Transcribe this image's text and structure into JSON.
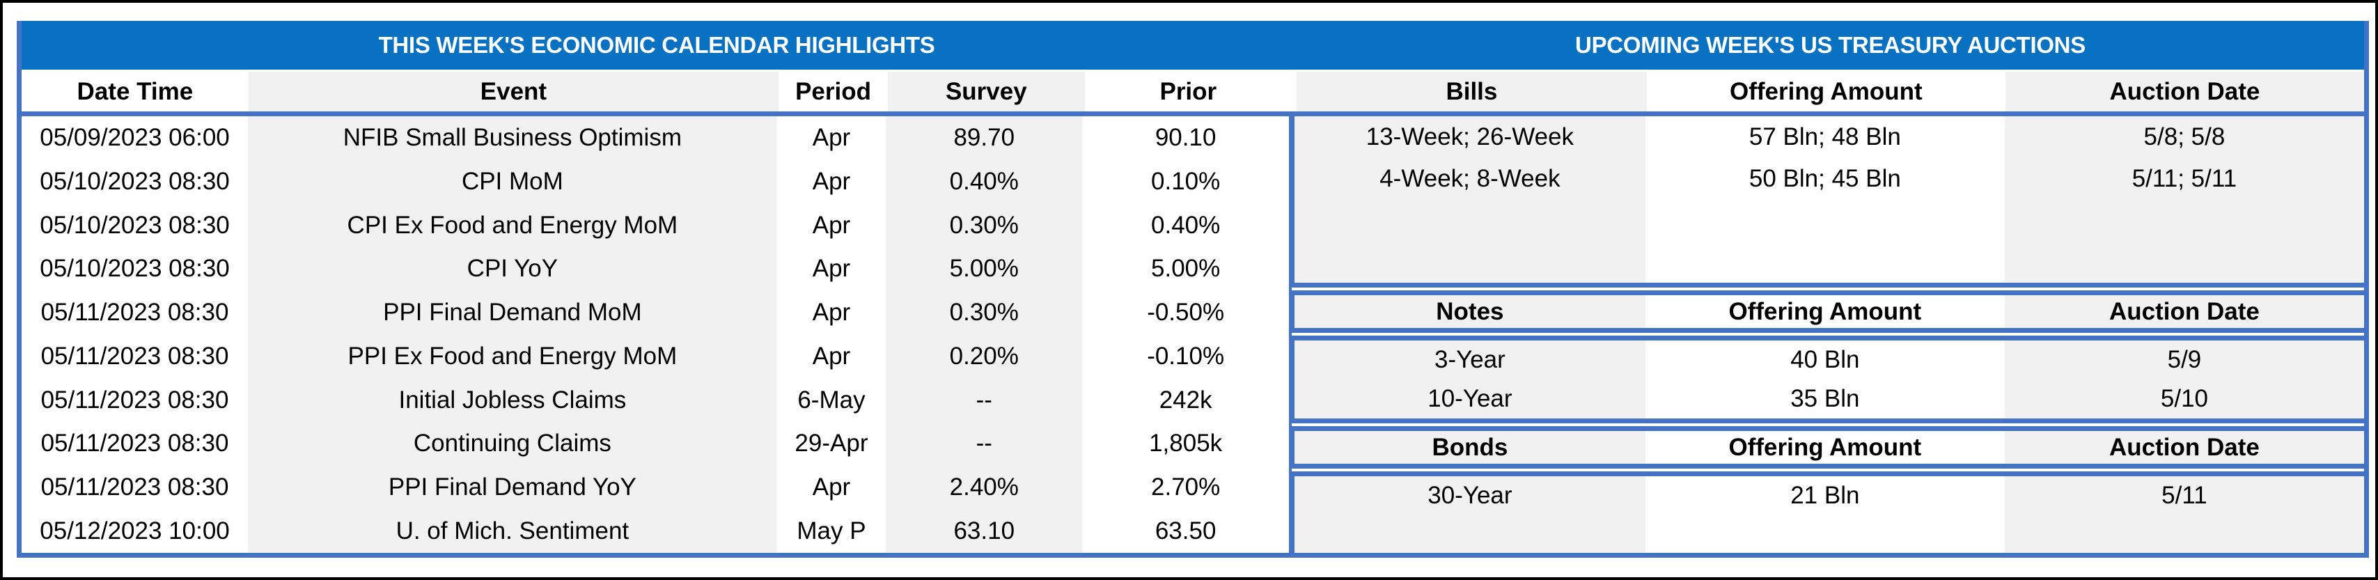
{
  "banner": {
    "left_title": "THIS WEEK'S ECONOMIC CALENDAR HIGHLIGHTS",
    "right_title": "UPCOMING WEEK'S US TREASURY AUCTIONS"
  },
  "colors": {
    "banner_blue": "#0971C2",
    "border_blue": "#4472C4",
    "stripe_gray": "#F1F1F1",
    "frame_black": "#000000",
    "banner_text": "#FFFFFF",
    "body_text": "#000000"
  },
  "calendar": {
    "columns": [
      "Date Time",
      "Event",
      "Period",
      "Survey",
      "Prior"
    ],
    "rows": [
      [
        "05/09/2023 06:00",
        "NFIB Small Business Optimism",
        "Apr",
        "89.70",
        "90.10"
      ],
      [
        "05/10/2023 08:30",
        "CPI MoM",
        "Apr",
        "0.40%",
        "0.10%"
      ],
      [
        "05/10/2023 08:30",
        "CPI Ex Food and Energy MoM",
        "Apr",
        "0.30%",
        "0.40%"
      ],
      [
        "05/10/2023 08:30",
        "CPI YoY",
        "Apr",
        "5.00%",
        "5.00%"
      ],
      [
        "05/11/2023 08:30",
        "PPI Final Demand MoM",
        "Apr",
        "0.30%",
        "-0.50%"
      ],
      [
        "05/11/2023 08:30",
        "PPI Ex Food and Energy MoM",
        "Apr",
        "0.20%",
        "-0.10%"
      ],
      [
        "05/11/2023 08:30",
        "Initial Jobless Claims",
        "6-May",
        "--",
        "242k"
      ],
      [
        "05/11/2023 08:30",
        "Continuing Claims",
        "29-Apr",
        "--",
        "1,805k"
      ],
      [
        "05/11/2023 08:30",
        "PPI Final Demand YoY",
        "Apr",
        "2.40%",
        "2.70%"
      ],
      [
        "05/12/2023 10:00",
        "U. of Mich. Sentiment",
        "May P",
        "63.10",
        "63.50"
      ]
    ]
  },
  "auctions": {
    "bills": {
      "columns": [
        "Bills",
        "Offering Amount",
        "Auction Date"
      ],
      "rows": [
        [
          "13-Week; 26-Week",
          "57 Bln; 48 Bln",
          "5/8; 5/8"
        ],
        [
          "4-Week; 8-Week",
          "50 Bln; 45 Bln",
          "5/11; 5/11"
        ]
      ]
    },
    "notes": {
      "columns": [
        "Notes",
        "Offering Amount",
        "Auction Date"
      ],
      "rows": [
        [
          "3-Year",
          "40 Bln",
          "5/9"
        ],
        [
          "10-Year",
          "35 Bln",
          "5/10"
        ]
      ]
    },
    "bonds": {
      "columns": [
        "Bonds",
        "Offering Amount",
        "Auction Date"
      ],
      "rows": [
        [
          "30-Year",
          "21 Bln",
          "5/11"
        ]
      ]
    }
  }
}
